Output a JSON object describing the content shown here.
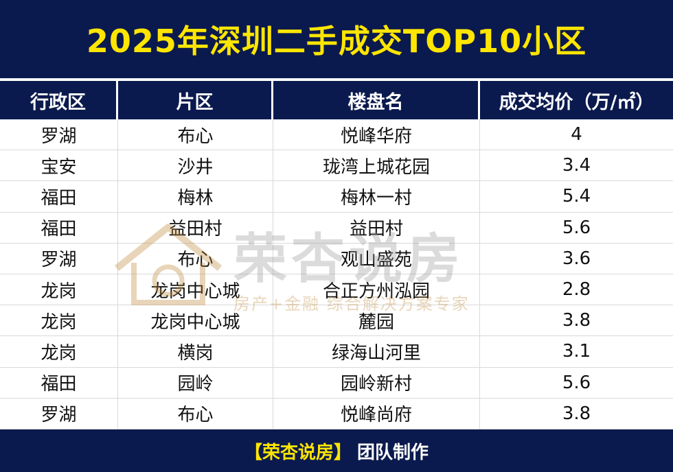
{
  "title": "2025年深圳二手成交TOP10小区",
  "headers": [
    "行政区",
    "片区",
    "楼盘名",
    "成交均价（万/㎡）"
  ],
  "rows": [
    [
      "罗湖",
      "布心",
      "悦峰华府",
      "4"
    ],
    [
      "宝安",
      "沙井",
      "珑湾上城花园",
      "3.4"
    ],
    [
      "福田",
      "梅林",
      "梅林一村",
      "5.4"
    ],
    [
      "福田",
      "益田村",
      "益田村",
      "5.6"
    ],
    [
      "罗湖",
      "布心",
      "观山盛苑",
      "3.6"
    ],
    [
      "龙岗",
      "龙岗中心城",
      "合正方州泓园",
      "2.8"
    ],
    [
      "龙岗",
      "龙岗中心城",
      "麓园",
      "3.8"
    ],
    [
      "龙岗",
      "横岗",
      "绿海山河里",
      "3.1"
    ],
    [
      "福田",
      "园岭",
      "园岭新村",
      "5.6"
    ],
    [
      "罗湖",
      "布心",
      "悦峰尚府",
      "3.8"
    ]
  ],
  "footer": {
    "brand": "【荣杏说房】",
    "text": "团队制作"
  },
  "watermark": {
    "brand": "荣杏说房",
    "slogan": "房产+金融 综合解决方案专家",
    "icon": "house-logo-icon"
  },
  "colors": {
    "navy": "#0b1a4e",
    "title_yellow": "#ffe600",
    "watermark_gold": "#c08a3a"
  }
}
